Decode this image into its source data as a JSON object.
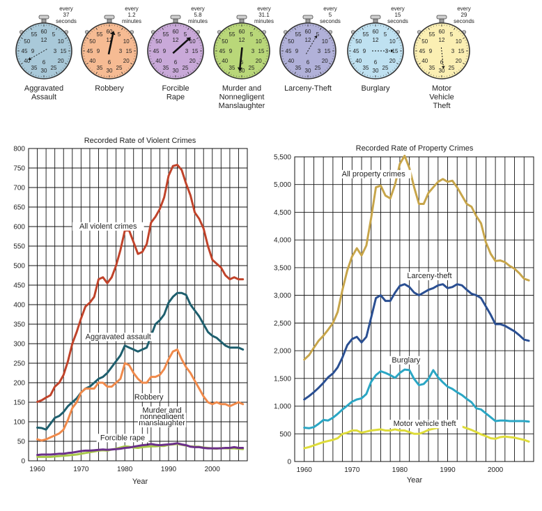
{
  "clocks": [
    {
      "every": "every",
      "interval": "37",
      "unit": "seconds",
      "label": [
        "Aggravated",
        "Assault"
      ],
      "color": "#a9c9d9",
      "hand_minute": 40,
      "hand_style": "dashed"
    },
    {
      "every": "every",
      "interval": "1.2",
      "unit": "minutes",
      "label": [
        "Robbery"
      ],
      "color": "#f6bb93",
      "hand_minute": 2,
      "hand_style": "solid"
    },
    {
      "every": "every",
      "interval": "5.8",
      "unit": "minutes",
      "label": [
        "Forcible",
        "Rape"
      ],
      "color": "#c9a9d9",
      "hand_minute": 8,
      "hand_style": "solid"
    },
    {
      "every": "every",
      "interval": "31.1",
      "unit": "minutes",
      "label": [
        "Murder and",
        "Nonnegligent",
        "Manslaughter"
      ],
      "color": "#b9d779",
      "hand_minute": 31,
      "hand_style": "solid"
    },
    {
      "every": "every",
      "interval": "5",
      "unit": "seconds",
      "label": [
        "Larceny-Theft"
      ],
      "color": "#b1b1d9",
      "hand_minute": 5,
      "hand_style": "dashed"
    },
    {
      "every": "every",
      "interval": "15",
      "unit": "seconds",
      "label": [
        "Burglary"
      ],
      "color": "#bfe1f1",
      "hand_minute": 15,
      "hand_style": "dashed"
    },
    {
      "every": "every",
      "interval": "29",
      "unit": "seconds",
      "label": [
        "Motor",
        "Vehicle",
        "Theft"
      ],
      "color": "#fbefb3",
      "hand_minute": 29,
      "hand_style": "dashed"
    }
  ],
  "dial_marks": [
    {
      "minute": 60,
      "text": "60"
    },
    {
      "minute": 0,
      "text": "12",
      "inner": true
    },
    {
      "minute": 5,
      "text": "5"
    },
    {
      "minute": 10,
      "text": "10"
    },
    {
      "minute": 15,
      "text": "15"
    },
    {
      "minute": 15,
      "text": "3",
      "inner": true
    },
    {
      "minute": 20,
      "text": "20"
    },
    {
      "minute": 25,
      "text": "25"
    },
    {
      "minute": 30,
      "text": "30"
    },
    {
      "minute": 30,
      "text": "6",
      "inner": true
    },
    {
      "minute": 35,
      "text": "35"
    },
    {
      "minute": 40,
      "text": "40"
    },
    {
      "minute": 45,
      "text": "45"
    },
    {
      "minute": 45,
      "text": "9",
      "inner": true
    },
    {
      "minute": 50,
      "text": "50"
    },
    {
      "minute": 55,
      "text": "55"
    }
  ],
  "chart_data": [
    {
      "type": "line",
      "title": "Recorded Rate of Violent Crimes",
      "xlabel": "Year",
      "ylabel": "",
      "xlim": [
        1958,
        2008
      ],
      "ylim": [
        0,
        800
      ],
      "xticks": [
        1960,
        1970,
        1980,
        1990,
        2000
      ],
      "yticks": [
        0,
        50,
        100,
        150,
        200,
        250,
        300,
        350,
        400,
        450,
        500,
        550,
        600,
        650,
        700,
        750,
        800
      ],
      "ytick_labels": [
        "0",
        "50",
        "100",
        "150",
        "200",
        "250",
        "300",
        "350",
        "400",
        "450",
        "500",
        "550",
        "600",
        "650",
        "700",
        "750",
        "800"
      ],
      "grid": true,
      "x": [
        1960,
        1961,
        1962,
        1963,
        1964,
        1965,
        1966,
        1967,
        1968,
        1969,
        1970,
        1971,
        1972,
        1973,
        1974,
        1975,
        1976,
        1977,
        1978,
        1979,
        1980,
        1981,
        1982,
        1983,
        1984,
        1985,
        1986,
        1987,
        1988,
        1989,
        1990,
        1991,
        1992,
        1993,
        1994,
        1995,
        1996,
        1997,
        1998,
        1999,
        2000,
        2001,
        2002,
        2003,
        2004,
        2005,
        2006,
        2007
      ],
      "series": [
        {
          "name": "All violent crimes",
          "color": "#c0432a",
          "values": [
            151,
            155,
            162,
            168,
            190,
            200,
            220,
            255,
            300,
            330,
            365,
            395,
            405,
            420,
            465,
            470,
            455,
            470,
            500,
            540,
            590,
            590,
            560,
            530,
            535,
            555,
            610,
            625,
            645,
            675,
            730,
            755,
            758,
            745,
            710,
            680,
            636,
            620,
            595,
            550,
            515,
            505,
            495,
            475,
            465,
            470,
            465,
            465
          ]
        },
        {
          "name": "Aggravated assault",
          "color": "#1e5f6e",
          "values": [
            85,
            84,
            80,
            95,
            110,
            115,
            125,
            140,
            150,
            160,
            175,
            185,
            190,
            200,
            210,
            215,
            225,
            240,
            255,
            270,
            295,
            290,
            285,
            280,
            285,
            290,
            320,
            350,
            360,
            375,
            405,
            420,
            430,
            430,
            425,
            400,
            385,
            370,
            350,
            330,
            320,
            315,
            305,
            295,
            290,
            290,
            290,
            285
          ]
        },
        {
          "name": "Robbery",
          "color": "#f08a4b",
          "values": [
            55,
            52,
            55,
            60,
            65,
            70,
            80,
            105,
            135,
            150,
            175,
            185,
            185,
            185,
            200,
            200,
            190,
            190,
            200,
            210,
            250,
            245,
            225,
            210,
            200,
            200,
            215,
            215,
            220,
            235,
            260,
            280,
            285,
            260,
            240,
            225,
            205,
            185,
            165,
            150,
            145,
            150,
            145,
            145,
            140,
            145,
            150,
            145
          ]
        },
        {
          "name": "Forcible rape",
          "color": "#a8c84a",
          "values": [
            10,
            10,
            10,
            10,
            11,
            12,
            13,
            14,
            15,
            16,
            18,
            20,
            22,
            24,
            26,
            27,
            26,
            29,
            31,
            34,
            37,
            36,
            34,
            33,
            35,
            36,
            37,
            37,
            38,
            38,
            41,
            42,
            43,
            41,
            39,
            37,
            36,
            36,
            34,
            33,
            32,
            31,
            33,
            32,
            32,
            32,
            31,
            30
          ]
        },
        {
          "name": "Murder and nonnegligent manslaughter",
          "color": "#6b2f8a",
          "values": [
            15,
            16,
            16,
            16,
            17,
            18,
            18,
            20,
            21,
            23,
            25,
            26,
            26,
            27,
            28,
            29,
            28,
            29,
            30,
            31,
            33,
            34,
            36,
            38,
            40,
            41,
            43,
            41,
            40,
            41,
            42,
            43,
            45,
            42,
            40,
            36,
            35,
            35,
            33,
            32,
            32,
            32,
            32,
            33,
            33,
            35,
            33,
            33
          ]
        }
      ],
      "annotations": [
        {
          "text": "All violent crimes",
          "year": 1976.2,
          "value": 595
        },
        {
          "text": "Aggravated assault",
          "year": 1978.5,
          "value": 312
        },
        {
          "text": "Robbery",
          "year": 1985.5,
          "value": 157
        },
        {
          "text": "Murder and",
          "year": 1988.5,
          "value": 123
        },
        {
          "text": "nonnegligent",
          "year": 1988.5,
          "value": 107
        },
        {
          "text": "manslaughter",
          "year": 1988.5,
          "value": 91
        },
        {
          "text": "Forcible rape",
          "year": 1979.5,
          "value": 53
        }
      ],
      "leader_line": {
        "from": [
          1985.2,
          86
        ],
        "to": [
          1985.2,
          40
        ]
      }
    },
    {
      "type": "line",
      "title": "Recorded Rate of Property Crimes",
      "xlabel": "Year",
      "ylabel": "",
      "xlim": [
        1958,
        2008
      ],
      "ylim": [
        0,
        5500
      ],
      "xticks": [
        1960,
        1970,
        1980,
        1990,
        2000
      ],
      "yticks": [
        0,
        500,
        1000,
        1500,
        2000,
        2500,
        3000,
        3500,
        4000,
        4500,
        5000,
        5500
      ],
      "ytick_labels": [
        "0",
        "500",
        "1,000",
        "1,500",
        "2,000",
        "2,500",
        "3,000",
        "3,500",
        "4,000",
        "4,500",
        "5,000",
        "5,500"
      ],
      "grid": true,
      "x": [
        1960,
        1961,
        1962,
        1963,
        1964,
        1965,
        1966,
        1967,
        1968,
        1969,
        1970,
        1971,
        1972,
        1973,
        1974,
        1975,
        1976,
        1977,
        1978,
        1979,
        1980,
        1981,
        1982,
        1983,
        1984,
        1985,
        1986,
        1987,
        1988,
        1989,
        1990,
        1991,
        1992,
        1993,
        1994,
        1995,
        1996,
        1997,
        1998,
        1999,
        2000,
        2001,
        2002,
        2003,
        2004,
        2005,
        2006,
        2007
      ],
      "series": [
        {
          "name": "All property crimes",
          "color": "#c7a54a",
          "values": [
            1840,
            1920,
            2050,
            2180,
            2270,
            2380,
            2500,
            2700,
            3100,
            3450,
            3700,
            3850,
            3720,
            3900,
            4400,
            4950,
            4980,
            4800,
            4750,
            5000,
            5370,
            5520,
            5300,
            4950,
            4650,
            4650,
            4850,
            4950,
            5050,
            5100,
            5050,
            5070,
            4950,
            4800,
            4650,
            4600,
            4430,
            4300,
            3960,
            3750,
            3620,
            3630,
            3600,
            3530,
            3480,
            3400,
            3300,
            3270
          ]
        },
        {
          "name": "Larceny-theft",
          "color": "#2a4f92",
          "values": [
            1120,
            1180,
            1250,
            1330,
            1420,
            1520,
            1590,
            1700,
            1880,
            2100,
            2210,
            2250,
            2150,
            2250,
            2600,
            2950,
            3000,
            2900,
            2900,
            3050,
            3170,
            3200,
            3150,
            3050,
            3000,
            3050,
            3100,
            3130,
            3180,
            3200,
            3130,
            3150,
            3200,
            3180,
            3100,
            3030,
            3000,
            2950,
            2800,
            2650,
            2480,
            2480,
            2450,
            2400,
            2350,
            2280,
            2200,
            2180
          ]
        },
        {
          "name": "Burglary",
          "color": "#2aa6c4",
          "values": [
            610,
            600,
            620,
            680,
            750,
            740,
            790,
            860,
            940,
            1010,
            1080,
            1120,
            1140,
            1220,
            1440,
            1560,
            1630,
            1600,
            1560,
            1510,
            1600,
            1660,
            1650,
            1490,
            1380,
            1400,
            1490,
            1650,
            1520,
            1430,
            1350,
            1310,
            1250,
            1200,
            1130,
            1070,
            960,
            940,
            870,
            800,
            730,
            740,
            740,
            730,
            730,
            730,
            730,
            720
          ]
        },
        {
          "name": "Motor vehicle theft",
          "color": "#dedc3a",
          "values": [
            240,
            260,
            290,
            320,
            350,
            370,
            390,
            420,
            500,
            520,
            560,
            560,
            520,
            540,
            560,
            570,
            580,
            560,
            560,
            580,
            560,
            560,
            530,
            500,
            500,
            530,
            570,
            590,
            610,
            640,
            660,
            690,
            660,
            630,
            600,
            570,
            530,
            490,
            460,
            420,
            410,
            440,
            450,
            440,
            430,
            410,
            390,
            360
          ]
        }
      ],
      "annotations": [
        {
          "text": "All property crimes",
          "year": 1974.5,
          "value": 5150
        },
        {
          "text": "Larceny-theft",
          "year": 1986.2,
          "value": 3310
        },
        {
          "text": "Burglary",
          "year": 1981.3,
          "value": 1790
        },
        {
          "text": "Motor vehicle theft",
          "year": 1985.2,
          "value": 640
        }
      ]
    }
  ]
}
